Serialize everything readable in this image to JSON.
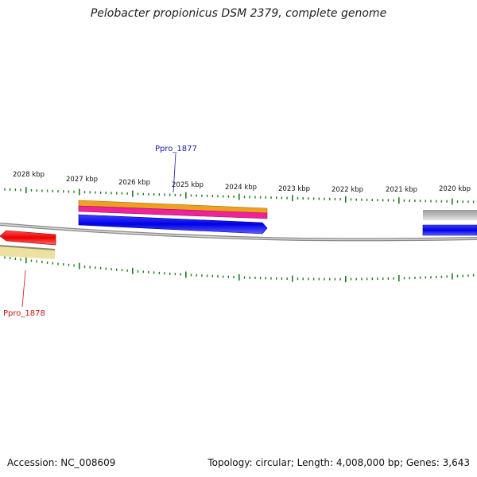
{
  "title": "Pelobacter propionicus DSM 2379, complete genome",
  "ruler": {
    "labels": [
      "2028 kbp",
      "2027 kbp",
      "2026 kbp",
      "2025 kbp",
      "2024 kbp",
      "2023 kbp",
      "2022 kbp",
      "2021 kbp",
      "2020 kbp"
    ]
  },
  "genes": {
    "top_label": "Ppro_1877",
    "bottom_label": "Ppro_1878"
  },
  "colors": {
    "backbone": "#8a8a8a",
    "tick": "#1f7a1f",
    "top_label": "#1a1aa8",
    "bottom_label": "#cc1111",
    "gene_blue": "#1010e0",
    "gene_orange": "#f0a020",
    "gene_magenta": "#ee2299",
    "gene_red": "#ee1111",
    "gene_khaki": "#eee0a0",
    "gene_gray": "#b8b8b8"
  },
  "footer": {
    "accession": "Accession: NC_008609",
    "summary": "Topology: circular; Length: 4,008,000 bp; Genes: 3,643"
  }
}
